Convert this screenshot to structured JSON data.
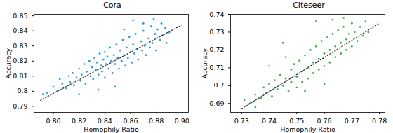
{
  "chart_data": [
    {
      "type": "scatter",
      "title": "Cora",
      "xlabel": "Homophily Ratio",
      "ylabel": "Accuracy",
      "xlim": [
        0.785,
        0.905
      ],
      "xticks": [
        {
          "value": 0.8,
          "label": "0.80"
        },
        {
          "value": 0.82,
          "label": "0.82"
        },
        {
          "value": 0.84,
          "label": "0.84"
        },
        {
          "value": 0.86,
          "label": "0.86"
        },
        {
          "value": 0.88,
          "label": "0.88"
        },
        {
          "value": 0.9,
          "label": "0.90"
        }
      ],
      "ylim": [
        0.786,
        0.851
      ],
      "yticks": [
        0.79,
        0.8,
        0.81,
        0.82,
        0.83,
        0.84,
        0.85
      ],
      "series": [
        {
          "type": "scatter",
          "marker": "circle",
          "color": "#2b9be9",
          "x": [
            0.792,
            0.795,
            0.8,
            0.803,
            0.805,
            0.807,
            0.81,
            0.812,
            0.813,
            0.815,
            0.816,
            0.818,
            0.82,
            0.821,
            0.822,
            0.824,
            0.825,
            0.826,
            0.828,
            0.829,
            0.83,
            0.831,
            0.832,
            0.833,
            0.834,
            0.835,
            0.836,
            0.837,
            0.838,
            0.839,
            0.84,
            0.84,
            0.841,
            0.842,
            0.843,
            0.844,
            0.845,
            0.846,
            0.847,
            0.848,
            0.849,
            0.85,
            0.851,
            0.852,
            0.853,
            0.854,
            0.855,
            0.856,
            0.857,
            0.858,
            0.859,
            0.86,
            0.861,
            0.862,
            0.863,
            0.864,
            0.865,
            0.866,
            0.868,
            0.869,
            0.87,
            0.871,
            0.872,
            0.874,
            0.875,
            0.876,
            0.877,
            0.879,
            0.88,
            0.881,
            0.883,
            0.884,
            0.885,
            0.887,
            0.888,
            0.89,
            0.878,
            0.87,
            0.855,
            0.848,
            0.835,
            0.82,
            0.862
          ],
          "values": [
            0.798,
            0.799,
            0.803,
            0.8,
            0.808,
            0.805,
            0.802,
            0.81,
            0.806,
            0.812,
            0.804,
            0.809,
            0.815,
            0.807,
            0.811,
            0.818,
            0.805,
            0.813,
            0.82,
            0.81,
            0.816,
            0.808,
            0.822,
            0.814,
            0.819,
            0.811,
            0.825,
            0.817,
            0.813,
            0.821,
            0.809,
            0.826,
            0.818,
            0.823,
            0.815,
            0.829,
            0.82,
            0.812,
            0.824,
            0.818,
            0.831,
            0.822,
            0.815,
            0.827,
            0.82,
            0.834,
            0.824,
            0.817,
            0.829,
            0.822,
            0.836,
            0.826,
            0.819,
            0.831,
            0.825,
            0.838,
            0.828,
            0.821,
            0.833,
            0.827,
            0.84,
            0.83,
            0.824,
            0.835,
            0.829,
            0.843,
            0.832,
            0.838,
            0.827,
            0.841,
            0.834,
            0.845,
            0.837,
            0.842,
            0.832,
            0.839,
            0.848,
            0.845,
            0.841,
            0.803,
            0.801,
            0.798,
            0.847
          ]
        },
        {
          "type": "line",
          "line_style": "dotted",
          "color": "#333333",
          "x": [
            0.79,
            0.9
          ],
          "values": [
            0.794,
            0.844
          ]
        }
      ]
    },
    {
      "type": "scatter",
      "title": "Citeseer",
      "xlabel": "Homophily Ratio",
      "ylabel": "Accuracy",
      "xlim": [
        0.726,
        0.782
      ],
      "xticks": [
        {
          "value": 0.73,
          "label": "0.73"
        },
        {
          "value": 0.74,
          "label": "0.74"
        },
        {
          "value": 0.75,
          "label": "0.75"
        },
        {
          "value": 0.76,
          "label": "0.76"
        },
        {
          "value": 0.77,
          "label": "0.77"
        },
        {
          "value": 0.78,
          "label": "0.78"
        }
      ],
      "ylim": [
        0.685,
        0.74
      ],
      "yticks": [
        0.69,
        0.7,
        0.71,
        0.72,
        0.73,
        0.74
      ],
      "series": [
        {
          "type": "scatter",
          "marker": "circle",
          "color": "#3cb043",
          "x": [
            0.731,
            0.733,
            0.735,
            0.737,
            0.738,
            0.739,
            0.74,
            0.741,
            0.742,
            0.743,
            0.744,
            0.745,
            0.746,
            0.747,
            0.748,
            0.748,
            0.749,
            0.75,
            0.75,
            0.751,
            0.752,
            0.752,
            0.753,
            0.754,
            0.754,
            0.755,
            0.756,
            0.756,
            0.757,
            0.758,
            0.758,
            0.759,
            0.76,
            0.76,
            0.761,
            0.762,
            0.762,
            0.763,
            0.764,
            0.764,
            0.765,
            0.766,
            0.766,
            0.767,
            0.768,
            0.768,
            0.769,
            0.77,
            0.77,
            0.771,
            0.772,
            0.773,
            0.774,
            0.775,
            0.776,
            0.757,
            0.763,
            0.745,
            0.74,
            0.753,
            0.76,
            0.735,
            0.746,
            0.767
          ],
          "values": [
            0.692,
            0.69,
            0.695,
            0.693,
            0.699,
            0.696,
            0.701,
            0.694,
            0.703,
            0.698,
            0.706,
            0.7,
            0.704,
            0.697,
            0.709,
            0.702,
            0.712,
            0.705,
            0.699,
            0.714,
            0.708,
            0.702,
            0.717,
            0.71,
            0.704,
            0.72,
            0.713,
            0.707,
            0.722,
            0.715,
            0.709,
            0.725,
            0.718,
            0.711,
            0.727,
            0.72,
            0.713,
            0.729,
            0.722,
            0.716,
            0.731,
            0.724,
            0.718,
            0.733,
            0.726,
            0.72,
            0.729,
            0.735,
            0.722,
            0.73,
            0.725,
            0.733,
            0.728,
            0.736,
            0.73,
            0.736,
            0.737,
            0.724,
            0.711,
            0.697,
            0.701,
            0.688,
            0.716,
            0.738
          ]
        },
        {
          "type": "line",
          "line_style": "dotted",
          "color": "#333333",
          "x": [
            0.73,
            0.78
          ],
          "values": [
            0.687,
            0.735
          ]
        }
      ]
    }
  ]
}
